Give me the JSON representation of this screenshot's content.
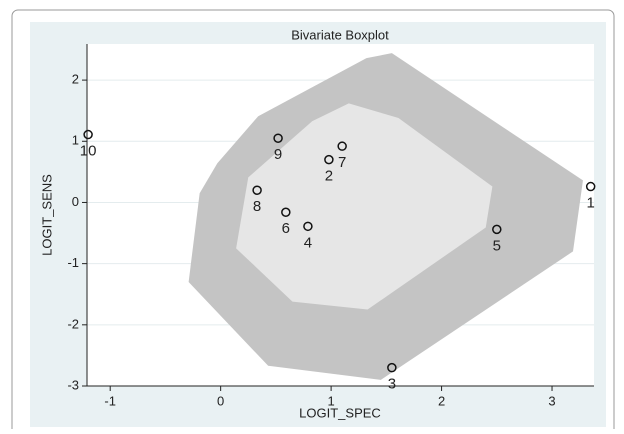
{
  "chart_data": {
    "type": "scatter",
    "title": "Bivariate Boxplot",
    "x_label": "LOGIT_SPEC",
    "y_label": "LOGIT_SENS",
    "xlim": [
      -1.21,
      3.38
    ],
    "ylim": [
      -3,
      2.59
    ],
    "xticks": [
      -1,
      0,
      1,
      2,
      3
    ],
    "yticks": [
      -3,
      -2,
      -1,
      0,
      1,
      2
    ],
    "grid": true,
    "polygons": [
      {
        "color": "#c4c4c4",
        "x": [
          1.55,
          1.32,
          0.34,
          -0.03,
          -0.19,
          -0.29,
          0.43,
          1.45,
          3.19,
          3.28
        ],
        "y": [
          2.44,
          2.36,
          1.41,
          0.64,
          0.15,
          -1.3,
          -2.67,
          -2.9,
          -0.8,
          0.36
        ]
      },
      {
        "color": "#e6e6e6",
        "x": [
          1.16,
          0.83,
          0.25,
          0.14,
          0.65,
          1.33,
          2.4,
          2.46,
          1.61
        ],
        "y": [
          1.62,
          1.33,
          0.41,
          -0.75,
          -1.62,
          -1.75,
          -0.41,
          0.26,
          1.38
        ]
      }
    ],
    "points": {
      "labels": [
        "1",
        "2",
        "3",
        "4",
        "5",
        "6",
        "7",
        "8",
        "9",
        "10"
      ],
      "x": [
        3.35,
        0.98,
        1.55,
        0.79,
        2.5,
        0.59,
        1.1,
        0.33,
        0.52,
        -1.2
      ],
      "y": [
        0.26,
        0.7,
        -2.7,
        -0.39,
        -0.44,
        -0.16,
        0.92,
        0.2,
        1.05,
        1.11
      ]
    }
  }
}
